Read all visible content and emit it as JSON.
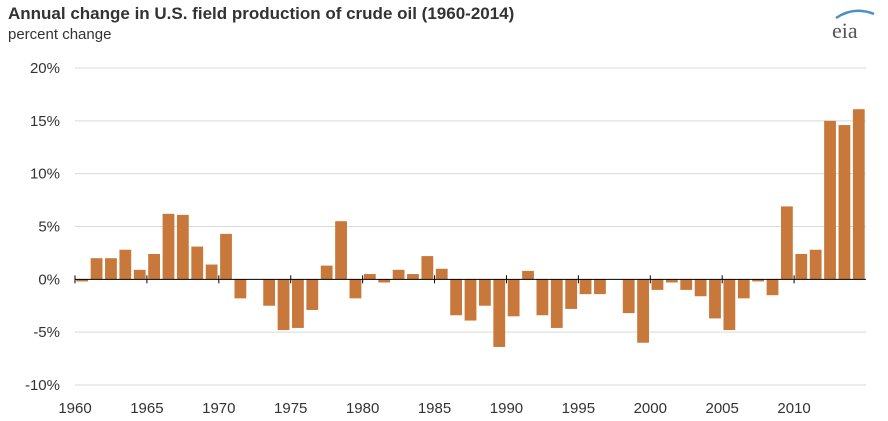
{
  "header": {
    "title": "Annual change in U.S. field production of crude oil (1960-2014)",
    "subtitle": "percent change",
    "logo_text": "eia"
  },
  "colors": {
    "bar": "#C8783A",
    "grid": "#D9D9D9",
    "axis": "#000000",
    "text": "#333333",
    "logo_arc": "#4A90C8"
  },
  "chart_data": {
    "type": "bar",
    "title": "Annual change in U.S. field production of crude oil (1960-2014)",
    "ylabel": "percent change",
    "xlabel": "",
    "ylim": [
      -10,
      20
    ],
    "y_ticks": [
      20,
      15,
      10,
      5,
      0,
      -5,
      -10
    ],
    "y_tick_labels": [
      "20%",
      "15%",
      "10%",
      "5%",
      "0%",
      "-5%",
      "-10%"
    ],
    "x_ticks": [
      1960,
      1965,
      1970,
      1975,
      1980,
      1985,
      1990,
      1995,
      2000,
      2005,
      2010
    ],
    "x_tick_labels": [
      "1960",
      "1965",
      "1970",
      "1975",
      "1980",
      "1985",
      "1990",
      "1995",
      "2000",
      "2005",
      "2010"
    ],
    "grid": true,
    "categories": [
      1960,
      1961,
      1962,
      1963,
      1964,
      1965,
      1966,
      1967,
      1968,
      1969,
      1970,
      1971,
      1972,
      1973,
      1974,
      1975,
      1976,
      1977,
      1978,
      1979,
      1980,
      1981,
      1982,
      1983,
      1984,
      1985,
      1986,
      1987,
      1988,
      1989,
      1990,
      1991,
      1992,
      1993,
      1994,
      1995,
      1996,
      1997,
      1998,
      1999,
      2000,
      2001,
      2002,
      2003,
      2004,
      2005,
      2006,
      2007,
      2008,
      2009,
      2010,
      2011,
      2012,
      2013,
      2014
    ],
    "values": [
      -0.2,
      2.0,
      2.0,
      2.8,
      0.9,
      2.4,
      6.2,
      6.1,
      3.1,
      1.4,
      4.3,
      -1.8,
      0.0,
      -2.5,
      -4.8,
      -4.6,
      -2.9,
      1.3,
      5.5,
      -1.8,
      0.5,
      -0.3,
      0.9,
      0.5,
      2.2,
      1.0,
      -3.4,
      -3.9,
      -2.5,
      -6.4,
      -3.5,
      0.8,
      -3.4,
      -4.6,
      -2.8,
      -1.4,
      -1.4,
      0.0,
      -3.2,
      -6.0,
      -1.0,
      -0.3,
      -1.0,
      -1.6,
      -3.7,
      -4.8,
      -1.8,
      -0.2,
      -1.5,
      6.9,
      2.4,
      2.8,
      15.0,
      14.6,
      16.1
    ]
  }
}
